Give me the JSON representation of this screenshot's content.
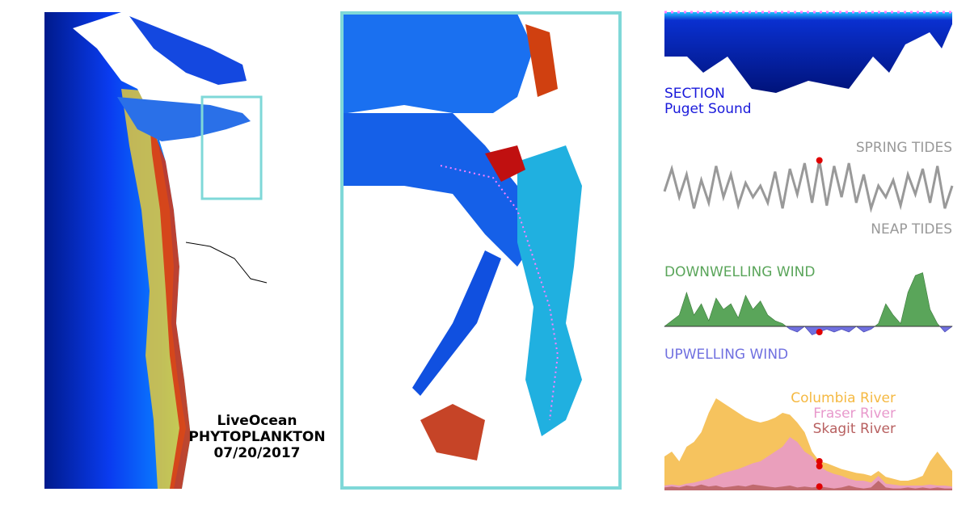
{
  "map_panel": {
    "title": "LiveOcean",
    "subtitle": "PHYTOPLANKTON",
    "date": "07/20/2017"
  },
  "section": {
    "label": "SECTION",
    "location": "Puget Sound"
  },
  "chart_data": [
    {
      "type": "line",
      "annotation_top": "SPRING TIDES",
      "annotation_bottom": "NEAP TIDES",
      "current_index": 21,
      "series": [
        {
          "color": "#999999",
          "values": [
            0.4,
            0.8,
            0.3,
            0.7,
            0.1,
            0.6,
            0.2,
            0.85,
            0.3,
            0.7,
            0.15,
            0.55,
            0.3,
            0.5,
            0.2,
            0.75,
            0.1,
            0.8,
            0.35,
            0.9,
            0.2,
            0.95,
            0.15,
            0.85,
            0.3,
            0.9,
            0.2,
            0.7,
            0.1,
            0.5,
            0.3,
            0.6,
            0.15,
            0.7,
            0.35,
            0.8,
            0.2,
            0.85,
            0.1,
            0.5
          ]
        }
      ]
    },
    {
      "type": "diverging-area",
      "annotation_top": "DOWNWELLING WIND",
      "annotation_bottom": "UPWELLING WIND",
      "current_index": 21,
      "top_color": "#5aa55a",
      "bottom_color": "#7070e0",
      "series": [
        {
          "color": "#5aa55a",
          "values": [
            0,
            0.1,
            0.2,
            0.6,
            0.2,
            0.4,
            0.1,
            0.5,
            0.3,
            0.4,
            0.15,
            0.55,
            0.3,
            0.45,
            0.2,
            0.1,
            0.05,
            -0.05,
            -0.1,
            0,
            -0.15,
            -0.1,
            -0.05,
            -0.1,
            -0.05,
            -0.1,
            0,
            -0.1,
            -0.05,
            0.05,
            0.4,
            0.2,
            0.05,
            0.6,
            0.9,
            0.95,
            0.3,
            0.05,
            -0.1,
            0
          ]
        }
      ]
    },
    {
      "type": "area",
      "current_index": 21,
      "series": [
        {
          "name": "Columbia River",
          "color": "#f5b942",
          "values": [
            0.35,
            0.4,
            0.3,
            0.45,
            0.5,
            0.6,
            0.8,
            0.95,
            0.9,
            0.85,
            0.8,
            0.75,
            0.72,
            0.7,
            0.72,
            0.75,
            0.8,
            0.78,
            0.7,
            0.6,
            0.4,
            0.3,
            0.28,
            0.25,
            0.22,
            0.2,
            0.18,
            0.17,
            0.15,
            0.2,
            0.14,
            0.12,
            0.1,
            0.1,
            0.12,
            0.15,
            0.3,
            0.4,
            0.3,
            0.2
          ]
        },
        {
          "name": "Fraser River",
          "color": "#e899cc",
          "values": [
            0.05,
            0.06,
            0.05,
            0.07,
            0.08,
            0.1,
            0.12,
            0.15,
            0.18,
            0.2,
            0.22,
            0.25,
            0.28,
            0.3,
            0.35,
            0.4,
            0.45,
            0.55,
            0.5,
            0.4,
            0.35,
            0.25,
            0.2,
            0.17,
            0.15,
            0.12,
            0.1,
            0.1,
            0.08,
            0.15,
            0.07,
            0.06,
            0.05,
            0.05,
            0.05,
            0.05,
            0.06,
            0.05,
            0.05,
            0.04
          ]
        },
        {
          "name": "Skagit River",
          "color": "#b86060",
          "values": [
            0.03,
            0.04,
            0.03,
            0.05,
            0.04,
            0.06,
            0.04,
            0.05,
            0.03,
            0.04,
            0.05,
            0.04,
            0.06,
            0.05,
            0.04,
            0.03,
            0.04,
            0.05,
            0.03,
            0.04,
            0.03,
            0.04,
            0.03,
            0.02,
            0.03,
            0.05,
            0.03,
            0.02,
            0.03,
            0.1,
            0.03,
            0.02,
            0.02,
            0.03,
            0.02,
            0.03,
            0.02,
            0.03,
            0.02,
            0.02
          ]
        }
      ]
    }
  ]
}
